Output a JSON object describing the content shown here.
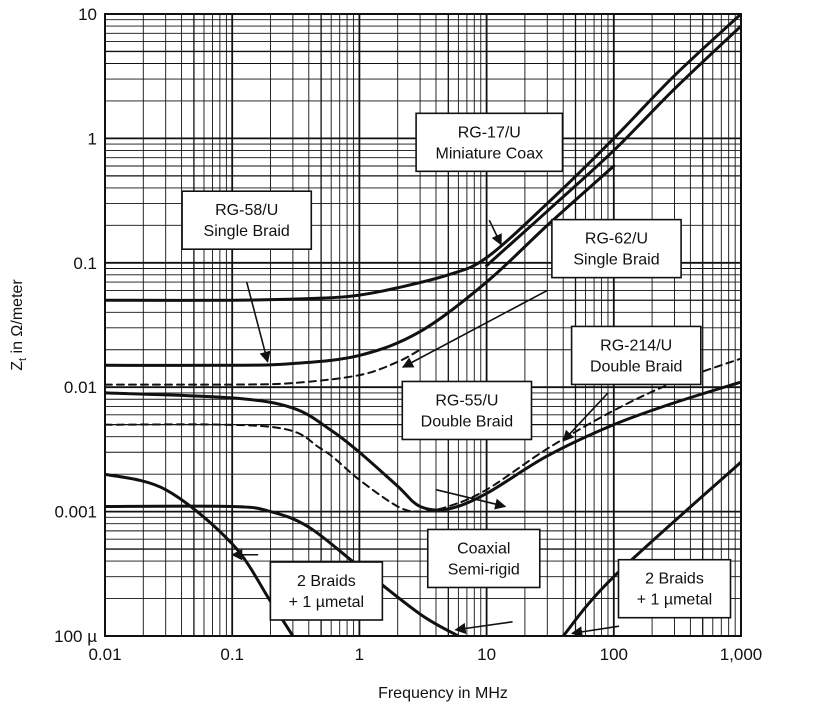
{
  "chart_data": {
    "type": "line",
    "xlabel": "Frequency in MHz",
    "ylabel_main": "Z",
    "ylabel_sub": "t",
    "ylabel_rest": " in Ω/meter",
    "xscale": "log",
    "yscale": "log",
    "xlim": [
      0.01,
      1000
    ],
    "ylim": [
      0.0001,
      10
    ],
    "grid": true,
    "x_ticks": [
      {
        "value": 0.01,
        "label": "0.01"
      },
      {
        "value": 0.1,
        "label": "0.1"
      },
      {
        "value": 1,
        "label": "1"
      },
      {
        "value": 10,
        "label": "10"
      },
      {
        "value": 100,
        "label": "100"
      },
      {
        "value": 1000,
        "label": "1,000"
      }
    ],
    "y_ticks": [
      {
        "value": 10,
        "label": "10"
      },
      {
        "value": 1,
        "label": "1"
      },
      {
        "value": 0.1,
        "label": "0.1"
      },
      {
        "value": 0.01,
        "label": "0.01"
      },
      {
        "value": 0.001,
        "label": "0.001"
      },
      {
        "value": 0.0001,
        "label": "100 µ"
      }
    ],
    "series": [
      {
        "name": "RG-17/U Miniature Coax (upper)",
        "style": "solid",
        "width": 3,
        "points": [
          [
            0.01,
            0.05
          ],
          [
            0.1,
            0.05
          ],
          [
            0.5,
            0.052
          ],
          [
            1,
            0.055
          ],
          [
            2,
            0.063
          ],
          [
            5,
            0.08
          ],
          [
            10,
            0.11
          ],
          [
            30,
            0.3
          ],
          [
            100,
            1.0
          ],
          [
            300,
            3.2
          ],
          [
            1000,
            10
          ]
        ]
      },
      {
        "name": "RG-17/U Miniature Coax (lower)",
        "style": "solid",
        "width": 3,
        "points": [
          [
            10,
            0.095
          ],
          [
            30,
            0.26
          ],
          [
            100,
            0.8
          ],
          [
            300,
            2.5
          ],
          [
            1000,
            8
          ]
        ]
      },
      {
        "name": "RG-58/U Single Braid",
        "style": "solid",
        "width": 3,
        "points": [
          [
            0.01,
            0.015
          ],
          [
            0.1,
            0.015
          ],
          [
            0.3,
            0.0155
          ],
          [
            1,
            0.018
          ],
          [
            3,
            0.028
          ],
          [
            10,
            0.07
          ],
          [
            30,
            0.2
          ],
          [
            100,
            0.6
          ]
        ]
      },
      {
        "name": "RG-62/U Single Braid",
        "style": "dashed",
        "width": 2,
        "points": [
          [
            0.01,
            0.0105
          ],
          [
            0.1,
            0.0105
          ],
          [
            0.3,
            0.0108
          ],
          [
            1,
            0.0125
          ],
          [
            2,
            0.016
          ],
          [
            3,
            0.02
          ]
        ]
      },
      {
        "name": "RG-55/U Double Braid",
        "style": "solid",
        "width": 3,
        "points": [
          [
            0.01,
            0.009
          ],
          [
            0.1,
            0.0082
          ],
          [
            0.3,
            0.0068
          ],
          [
            0.6,
            0.0045
          ],
          [
            1,
            0.003
          ],
          [
            2,
            0.0016
          ],
          [
            3,
            0.0011
          ],
          [
            5,
            0.00105
          ],
          [
            10,
            0.0014
          ],
          [
            30,
            0.0028
          ],
          [
            100,
            0.005
          ],
          [
            300,
            0.0075
          ],
          [
            1000,
            0.011
          ]
        ]
      },
      {
        "name": "RG-214/U Double Braid",
        "style": "dashed",
        "width": 2,
        "points": [
          [
            0.01,
            0.005
          ],
          [
            0.2,
            0.0048
          ],
          [
            0.5,
            0.0032
          ],
          [
            1,
            0.0018
          ],
          [
            2,
            0.0011
          ],
          [
            3,
            0.001
          ],
          [
            5,
            0.0011
          ],
          [
            10,
            0.0015
          ],
          [
            30,
            0.0032
          ],
          [
            100,
            0.0065
          ],
          [
            300,
            0.011
          ],
          [
            1000,
            0.017
          ]
        ]
      },
      {
        "name": "2 Braids + 1 µmetal",
        "style": "solid",
        "width": 3,
        "points": [
          [
            0.01,
            0.002
          ],
          [
            0.03,
            0.0015
          ],
          [
            0.1,
            0.00055
          ],
          [
            0.2,
            0.00019
          ],
          [
            0.3,
            0.0001
          ]
        ]
      },
      {
        "name": "Coaxial Semi-rigid",
        "style": "solid",
        "width": 3,
        "points": [
          [
            0.01,
            0.0011
          ],
          [
            0.1,
            0.0011
          ],
          [
            0.2,
            0.001
          ],
          [
            0.4,
            0.00075
          ],
          [
            1,
            0.00036
          ],
          [
            3,
            0.00015
          ],
          [
            6,
            0.0001
          ]
        ]
      },
      {
        "name": "2 Braids + 1 µmetal (rising)",
        "style": "solid",
        "width": 3,
        "points": [
          [
            40,
            0.0001
          ],
          [
            100,
            0.0003
          ],
          [
            1000,
            0.0025
          ]
        ]
      }
    ],
    "annotations": [
      {
        "lines": [
          "RG-17/U",
          "Miniature Coax"
        ],
        "box_x": 10.5,
        "box_y": 0.93,
        "anchor": "center",
        "arrow_from": [
          10.5,
          0.22
        ],
        "arrow_to": [
          13,
          0.14
        ]
      },
      {
        "lines": [
          "RG-58/U",
          "Single Braid"
        ],
        "box_x": 0.13,
        "box_y": 0.22,
        "anchor": "center",
        "arrow_from": [
          0.13,
          0.07
        ],
        "arrow_to": [
          0.19,
          0.016
        ]
      },
      {
        "lines": [
          "RG-62/U",
          "Single Braid"
        ],
        "box_x": 105,
        "box_y": 0.13,
        "anchor": "center",
        "arrow_from": [
          30,
          0.06
        ],
        "arrow_to": [
          2.2,
          0.0145
        ]
      },
      {
        "lines": [
          "RG-214/U",
          "Double Braid"
        ],
        "box_x": 150,
        "box_y": 0.018,
        "anchor": "center",
        "arrow_from": [
          90,
          0.009
        ],
        "arrow_to": [
          40,
          0.0037
        ]
      },
      {
        "lines": [
          "RG-55/U",
          "Double Braid"
        ],
        "box_x": 7,
        "box_y": 0.0065,
        "anchor": "center",
        "arrow_from": [
          4,
          0.0015
        ],
        "arrow_to": [
          14,
          0.0011
        ]
      },
      {
        "lines": [
          "Coaxial",
          "Semi-rigid"
        ],
        "box_x": 9.5,
        "box_y": 0.00042,
        "anchor": "center",
        "arrow_from": [
          16,
          0.00013
        ],
        "arrow_to": [
          5.7,
          0.000112
        ]
      },
      {
        "lines": [
          "2 Braids",
          "+ 1 µmetal"
        ],
        "box_x": 0.55,
        "box_y": 0.00023,
        "anchor": "center",
        "arrow_from": [
          0.16,
          0.00045
        ],
        "arrow_to": [
          0.1,
          0.00045
        ]
      },
      {
        "lines": [
          "2 Braids",
          "+ 1 µmetal"
        ],
        "box_x": 300,
        "box_y": 0.00024,
        "anchor": "center",
        "arrow_from": [
          110,
          0.00012
        ],
        "arrow_to": [
          47,
          0.000105
        ]
      }
    ]
  }
}
